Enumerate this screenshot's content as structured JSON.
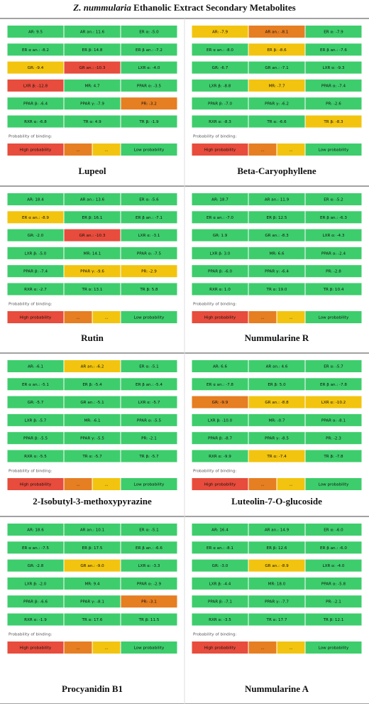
{
  "title": {
    "italic": "Z. nummularia",
    "rest": "Ethanolic Extract Secondary Metabolites"
  },
  "palette": {
    "green": "#3ecd6c",
    "yellow": "#f2c40f",
    "orange": "#e67e22",
    "red": "#e74c3c"
  },
  "legend": {
    "caption": "Probability of binding:",
    "items": [
      {
        "text": "High probability",
        "color": "red"
      },
      {
        "text": "...",
        "color": "orange"
      },
      {
        "text": "...",
        "color": "yellow"
      },
      {
        "text": "Low probability",
        "color": "green"
      }
    ]
  },
  "panels": [
    {
      "name": "Lupeol",
      "cells": [
        [
          [
            "AR: 9.5",
            "green"
          ],
          [
            "AR an.: 11.6",
            "green"
          ],
          [
            "ER α: -5.0",
            "green"
          ]
        ],
        [
          [
            "ER α an.: -8.2",
            "green"
          ],
          [
            "ER β: 14.8",
            "green"
          ],
          [
            "ER β an.: -7.2",
            "green"
          ]
        ],
        [
          [
            "GR: -9.4",
            "yellow"
          ],
          [
            "GR an.: -10.3",
            "red"
          ],
          [
            "LXR α: -4.0",
            "green"
          ]
        ],
        [
          [
            "LXR β: -12.8",
            "red"
          ],
          [
            "MR: 4.7",
            "green"
          ],
          [
            "PPAR α: -3.5",
            "green"
          ]
        ],
        [
          [
            "PPAR β: -6.4",
            "green"
          ],
          [
            "PPAR γ: -7.9",
            "green"
          ],
          [
            "PR: -3.2",
            "orange"
          ]
        ],
        [
          [
            "RXR α: -6.8",
            "green"
          ],
          [
            "TR α: 4.9",
            "green"
          ],
          [
            "TR β: -1.9",
            "green"
          ]
        ]
      ]
    },
    {
      "name": "Beta-Caryophyllene",
      "cells": [
        [
          [
            "AR: -7.9",
            "yellow"
          ],
          [
            "AR an.: -8.1",
            "orange"
          ],
          [
            "ER α: -7.9",
            "green"
          ]
        ],
        [
          [
            "ER α an.: -8.0",
            "green"
          ],
          [
            "ER β: -8.6",
            "yellow"
          ],
          [
            "ER β an.: -7.6",
            "green"
          ]
        ],
        [
          [
            "GR: -6.7",
            "green"
          ],
          [
            "GR an.: -7.1",
            "green"
          ],
          [
            "LXR α: -9.3",
            "green"
          ]
        ],
        [
          [
            "LXR β: -8.8",
            "green"
          ],
          [
            "MR: -7.7",
            "yellow"
          ],
          [
            "PPAR α: -7.4",
            "green"
          ]
        ],
        [
          [
            "PPAR β: -7.0",
            "green"
          ],
          [
            "PPAR γ: -6.2",
            "green"
          ],
          [
            "PR: -2.6",
            "green"
          ]
        ],
        [
          [
            "RXR α: -8.3",
            "green"
          ],
          [
            "TR α: -6.6",
            "green"
          ],
          [
            "TR β: -8.3",
            "yellow"
          ]
        ]
      ]
    },
    {
      "name": "Rutin",
      "cells": [
        [
          [
            "AR: 18.4",
            "green"
          ],
          [
            "AR an.: 13.6",
            "green"
          ],
          [
            "ER α: -5.6",
            "green"
          ]
        ],
        [
          [
            "ER α an.: -8.9",
            "yellow"
          ],
          [
            "ER β: 16.1",
            "green"
          ],
          [
            "ER β an.: -7.1",
            "green"
          ]
        ],
        [
          [
            "GR: -2.0",
            "green"
          ],
          [
            "GR an.: -10.3",
            "red"
          ],
          [
            "LXR α: -3.1",
            "green"
          ]
        ],
        [
          [
            "LXR β: -5.0",
            "green"
          ],
          [
            "MR: 14.1",
            "green"
          ],
          [
            "PPAR α: -7.5",
            "green"
          ]
        ],
        [
          [
            "PPAR β: -7.4",
            "green"
          ],
          [
            "PPAR γ: -9.6",
            "yellow"
          ],
          [
            "PR: -2.9",
            "yellow"
          ]
        ],
        [
          [
            "RXR α: -2.7",
            "green"
          ],
          [
            "TR α: 13.1",
            "green"
          ],
          [
            "TR β: 5.8",
            "green"
          ]
        ]
      ]
    },
    {
      "name": "Nummularine R",
      "cells": [
        [
          [
            "AR: 18.7",
            "green"
          ],
          [
            "AR an.: 11.9",
            "green"
          ],
          [
            "ER α: -5.2",
            "green"
          ]
        ],
        [
          [
            "ER α an.: -7.0",
            "green"
          ],
          [
            "ER β: 12.5",
            "green"
          ],
          [
            "ER β an.: -6.3",
            "green"
          ]
        ],
        [
          [
            "GR: 1.9",
            "green"
          ],
          [
            "GR an.: -8.3",
            "green"
          ],
          [
            "LXR α: -4.3",
            "green"
          ]
        ],
        [
          [
            "LXR β: 3.0",
            "green"
          ],
          [
            "MR: 6.6",
            "green"
          ],
          [
            "PPAR α: -2.4",
            "green"
          ]
        ],
        [
          [
            "PPAR β: -6.0",
            "green"
          ],
          [
            "PPAR γ: -6.4",
            "green"
          ],
          [
            "PR: -2.8",
            "green"
          ]
        ],
        [
          [
            "RXR α: 1.0",
            "green"
          ],
          [
            "TR α: 19.0",
            "green"
          ],
          [
            "TR β: 10.4",
            "green"
          ]
        ]
      ]
    },
    {
      "name": "2-Isobutyl-3-methoxypyrazine",
      "cells": [
        [
          [
            "AR: -6.1",
            "green"
          ],
          [
            "AR an.: -6.2",
            "yellow"
          ],
          [
            "ER α: -5.1",
            "green"
          ]
        ],
        [
          [
            "ER α an.: -5.1",
            "green"
          ],
          [
            "ER β: -5.4",
            "green"
          ],
          [
            "ER β an.: -5.4",
            "green"
          ]
        ],
        [
          [
            "GR: -5.7",
            "green"
          ],
          [
            "GR an.: -5.1",
            "green"
          ],
          [
            "LXR α: -5.7",
            "green"
          ]
        ],
        [
          [
            "LXR β: -5.7",
            "green"
          ],
          [
            "MR: -6.1",
            "green"
          ],
          [
            "PPAR α: -5.5",
            "green"
          ]
        ],
        [
          [
            "PPAR β: -5.5",
            "green"
          ],
          [
            "PPAR γ: -5.5",
            "green"
          ],
          [
            "PR: -2.1",
            "green"
          ]
        ],
        [
          [
            "RXR α: -5.5",
            "green"
          ],
          [
            "TR α: -5.7",
            "green"
          ],
          [
            "TR β: -5.7",
            "green"
          ]
        ]
      ]
    },
    {
      "name": "Luteolin-7-O-glucoside",
      "cells": [
        [
          [
            "AR: 6.6",
            "green"
          ],
          [
            "AR an.: 4.6",
            "green"
          ],
          [
            "ER α: -5.7",
            "green"
          ]
        ],
        [
          [
            "ER α an.: -7.8",
            "green"
          ],
          [
            "ER β: 5.0",
            "green"
          ],
          [
            "ER β an.: -7.8",
            "green"
          ]
        ],
        [
          [
            "GR: -9.9",
            "orange"
          ],
          [
            "GR an.: -8.8",
            "yellow"
          ],
          [
            "LXR α: -10.2",
            "yellow"
          ]
        ],
        [
          [
            "LXR β: -10.0",
            "green"
          ],
          [
            "MR: -0.7",
            "green"
          ],
          [
            "PPAR α: -8.1",
            "green"
          ]
        ],
        [
          [
            "PPAR β: -8.7",
            "green"
          ],
          [
            "PPAR γ: -8.5",
            "green"
          ],
          [
            "PR: -2.3",
            "green"
          ]
        ],
        [
          [
            "RXR α: -9.9",
            "green"
          ],
          [
            "TR α: -7.4",
            "yellow"
          ],
          [
            "TR β: -7.8",
            "green"
          ]
        ]
      ]
    },
    {
      "name": "Procyanidin B1",
      "cells": [
        [
          [
            "AR: 18.6",
            "green"
          ],
          [
            "AR an.: 10.1",
            "green"
          ],
          [
            "ER α: -5.1",
            "green"
          ]
        ],
        [
          [
            "ER α an.: -7.5",
            "green"
          ],
          [
            "ER β: 17.5",
            "green"
          ],
          [
            "ER β an.: -6.6",
            "green"
          ]
        ],
        [
          [
            "GR: -2.8",
            "green"
          ],
          [
            "GR an.: -9.0",
            "yellow"
          ],
          [
            "LXR α: -3.3",
            "green"
          ]
        ],
        [
          [
            "LXR β: -2.0",
            "green"
          ],
          [
            "MR: 9.4",
            "green"
          ],
          [
            "PPAR α: -2.9",
            "green"
          ]
        ],
        [
          [
            "PPAR β: -6.6",
            "green"
          ],
          [
            "PPAR γ: -8.1",
            "green"
          ],
          [
            "PR: -3.1",
            "orange"
          ]
        ],
        [
          [
            "RXR α: -1.9",
            "green"
          ],
          [
            "TR α: 17.6",
            "green"
          ],
          [
            "TR β: 11.5",
            "green"
          ]
        ]
      ]
    },
    {
      "name": "Nummularine A",
      "cells": [
        [
          [
            "AR: 16.4",
            "green"
          ],
          [
            "AR an.: 14.9",
            "green"
          ],
          [
            "ER α: -6.0",
            "green"
          ]
        ],
        [
          [
            "ER α an.: -8.1",
            "green"
          ],
          [
            "ER β: 12.6",
            "green"
          ],
          [
            "ER β an.: -6.0",
            "green"
          ]
        ],
        [
          [
            "GR: -3.0",
            "green"
          ],
          [
            "GR an.: -8.9",
            "yellow"
          ],
          [
            "LXR α: -4.0",
            "green"
          ]
        ],
        [
          [
            "LXR β: -4.4",
            "green"
          ],
          [
            "MR: 18.0",
            "green"
          ],
          [
            "PPAR α: -5.8",
            "green"
          ]
        ],
        [
          [
            "PPAR β: -7.1",
            "green"
          ],
          [
            "PPAR γ: -7.7",
            "green"
          ],
          [
            "PR: -2.1",
            "green"
          ]
        ],
        [
          [
            "RXR α: -3.5",
            "green"
          ],
          [
            "TR α: 17.7",
            "green"
          ],
          [
            "TR β: 12.1",
            "green"
          ]
        ]
      ]
    }
  ]
}
